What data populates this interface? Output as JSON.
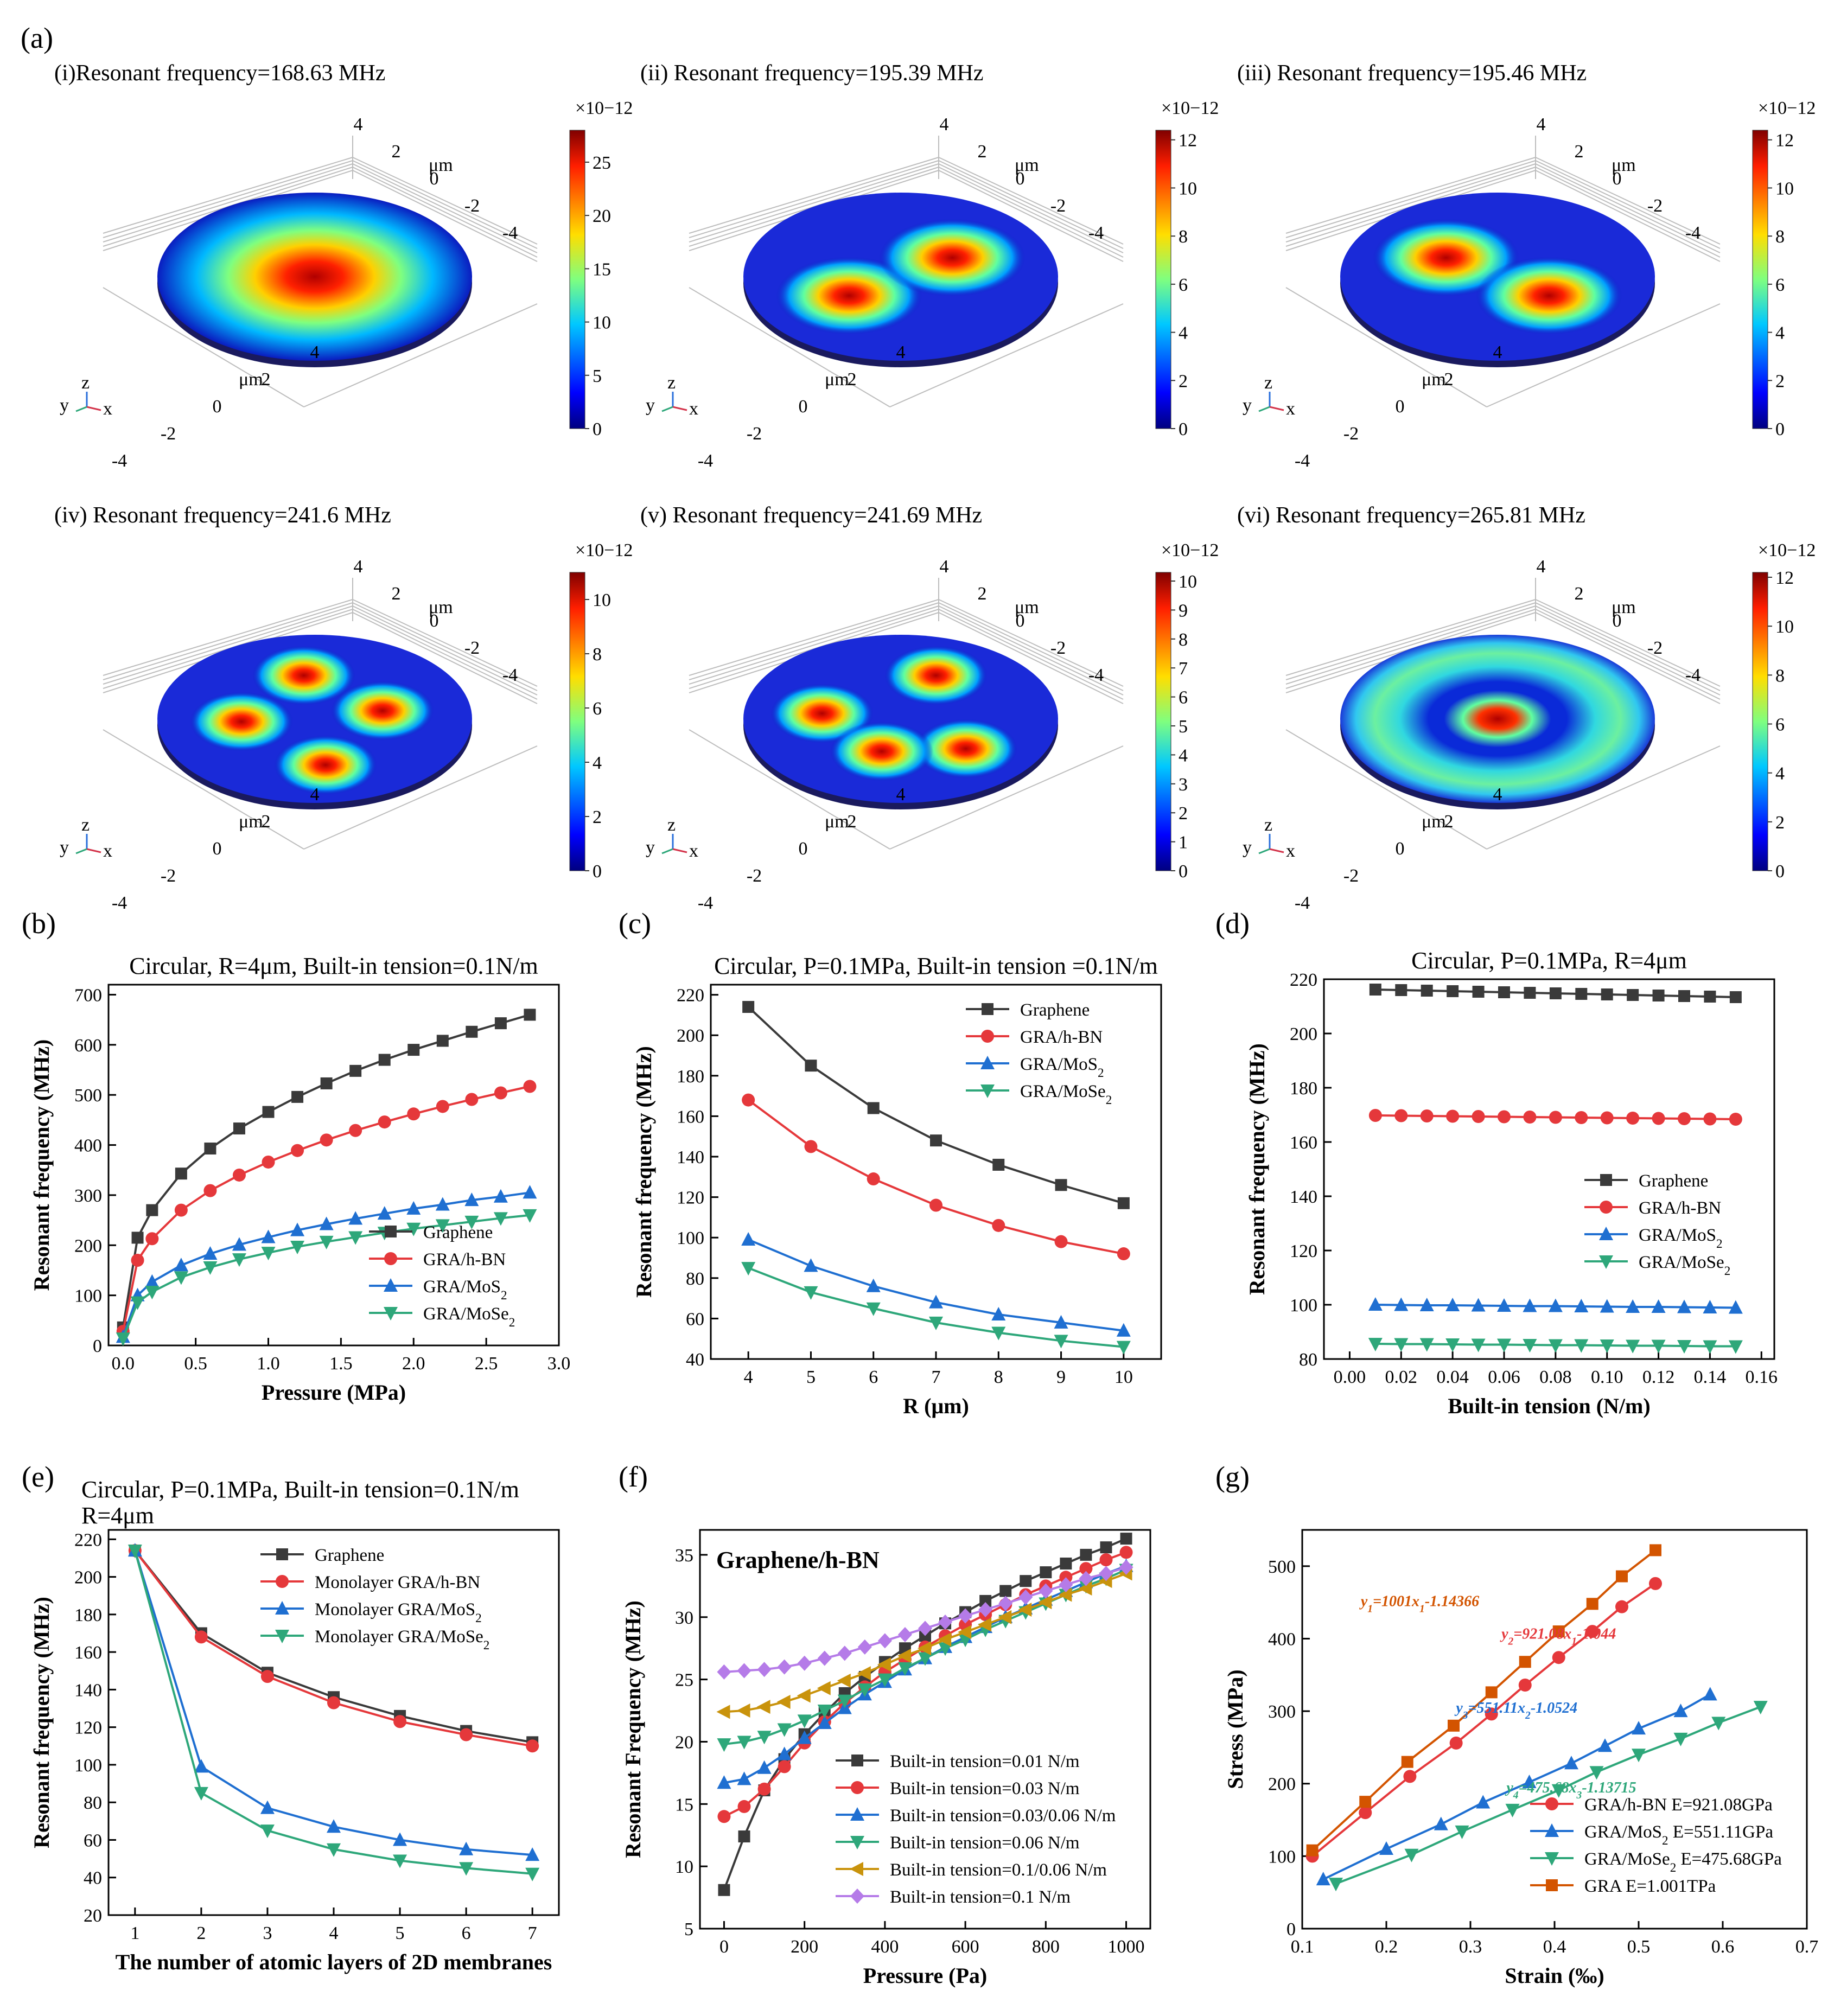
{
  "figure": {
    "panel_a": {
      "letter": "(a)",
      "modes": [
        {
          "label": "(i)Resonant frequency=168.63 MHz",
          "cbar_exp": "×10−12",
          "cbar_max": 28,
          "cbar_ticks": [
            "0",
            "5",
            "10",
            "15",
            "20",
            "25"
          ],
          "pattern": "m01"
        },
        {
          "label": "(ii) Resonant frequency=195.39 MHz",
          "cbar_exp": "×10−12",
          "cbar_max": 12.4,
          "cbar_ticks": [
            "0",
            "2",
            "4",
            "6",
            "8",
            "10",
            "12"
          ],
          "pattern": "m11a"
        },
        {
          "label": "(iii) Resonant frequency=195.46 MHz",
          "cbar_exp": "×10−12",
          "cbar_max": 12.4,
          "cbar_ticks": [
            "0",
            "2",
            "4",
            "6",
            "8",
            "10",
            "12"
          ],
          "pattern": "m11b"
        },
        {
          "label": "(iv) Resonant frequency=241.6 MHz",
          "cbar_exp": "×10−12",
          "cbar_max": 11,
          "cbar_ticks": [
            "0",
            "2",
            "4",
            "6",
            "8",
            "10"
          ],
          "pattern": "m21a"
        },
        {
          "label": "(v) Resonant frequency=241.69 MHz",
          "cbar_exp": "×10−12",
          "cbar_max": 10.3,
          "cbar_ticks": [
            "0",
            "1",
            "2",
            "3",
            "4",
            "5",
            "6",
            "7",
            "8",
            "9",
            "10"
          ],
          "pattern": "m21b"
        },
        {
          "label": "(vi) Resonant frequency=265.81 MHz",
          "cbar_exp": "×10−12",
          "cbar_max": 12.2,
          "cbar_ticks": [
            "0",
            "2",
            "4",
            "6",
            "8",
            "10",
            "12"
          ],
          "pattern": "m02"
        }
      ],
      "axis_unit": "μm",
      "axis_ticks": [
        "-4",
        "-2",
        "0",
        "2",
        "4"
      ],
      "triad": [
        "y",
        "z",
        "x"
      ]
    }
  },
  "chart_data": [
    {
      "panel": "(b)",
      "type": "line",
      "title": "Circular, R=4μm, Built-in tension=0.1N/m",
      "xlabel": "Pressure (MPa)",
      "ylabel": "Resonant frequency (MHz)",
      "xlim": [
        -0.1,
        3.0
      ],
      "ylim": [
        0,
        720
      ],
      "xticks": [
        0.0,
        0.5,
        1.0,
        1.5,
        2.0,
        2.5,
        3.0
      ],
      "xtick_labels": [
        "0.0",
        "0.5",
        "1.0",
        "1.5",
        "2.0",
        "2.5",
        "3.0"
      ],
      "yticks": [
        0,
        100,
        200,
        300,
        400,
        500,
        600,
        700
      ],
      "legend_pos": "bottom-right",
      "x": [
        0.0,
        0.1,
        0.2,
        0.4,
        0.6,
        0.8,
        1.0,
        1.2,
        1.4,
        1.6,
        1.8,
        2.0,
        2.2,
        2.4,
        2.6,
        2.8
      ],
      "series": [
        {
          "name": "Graphene",
          "color": "#3a3a3a",
          "marker": "square",
          "values": [
            36,
            215,
            270,
            343,
            393,
            433,
            466,
            496,
            523,
            548,
            570,
            590,
            608,
            626,
            643,
            660
          ]
        },
        {
          "name": "GRA/h-BN",
          "color": "#e5383b",
          "marker": "circle",
          "values": [
            28,
            170,
            213,
            270,
            309,
            340,
            366,
            389,
            410,
            429,
            446,
            462,
            477,
            491,
            504,
            517
          ]
        },
        {
          "name": "GRA/MoS2",
          "color": "#1f6fd1",
          "marker": "triangle-up",
          "values": [
            17,
            100,
            127,
            160,
            183,
            201,
            216,
            230,
            242,
            253,
            263,
            273,
            281,
            290,
            297,
            305
          ]
        },
        {
          "name": "GRA/MoSe2",
          "color": "#2ea77a",
          "marker": "triangle-down",
          "values": [
            14,
            86,
            107,
            136,
            156,
            172,
            185,
            197,
            207,
            216,
            225,
            233,
            240,
            247,
            254,
            260
          ]
        }
      ]
    },
    {
      "panel": "(c)",
      "type": "line",
      "title": "Circular, P=0.1MPa, Built-in tension =0.1N/m",
      "xlabel": "R (μm)",
      "ylabel": "Resonant frequency (MHz)",
      "xlim": [
        3.4,
        10.6
      ],
      "ylim": [
        40,
        225
      ],
      "xticks": [
        4,
        5,
        6,
        7,
        8,
        9,
        10
      ],
      "xtick_labels": [
        "4",
        "5",
        "6",
        "7",
        "8",
        "9",
        "10"
      ],
      "yticks": [
        40,
        60,
        80,
        100,
        120,
        140,
        160,
        180,
        200,
        220
      ],
      "legend_pos": "top-right",
      "x": [
        4,
        5,
        6,
        7,
        8,
        9,
        10
      ],
      "series": [
        {
          "name": "Graphene",
          "color": "#3a3a3a",
          "marker": "square",
          "values": [
            214,
            185,
            164,
            148,
            136,
            126,
            117
          ]
        },
        {
          "name": "GRA/h-BN",
          "color": "#e5383b",
          "marker": "circle",
          "values": [
            168,
            145,
            129,
            116,
            106,
            98,
            92
          ]
        },
        {
          "name": "GRA/MoS2",
          "color": "#1f6fd1",
          "marker": "triangle-up",
          "values": [
            99,
            86,
            76,
            68,
            62,
            58,
            54
          ]
        },
        {
          "name": "GRA/MoSe2",
          "color": "#2ea77a",
          "marker": "triangle-down",
          "values": [
            85,
            73,
            65,
            58,
            53,
            49,
            46
          ]
        }
      ]
    },
    {
      "panel": "(d)",
      "type": "line",
      "title": "Circular, P=0.1MPa, R=4μm",
      "xlabel": "Built-in tension (N/m)",
      "ylabel": "Resonant frequency (MHz)",
      "xlim": [
        -0.01,
        0.165
      ],
      "ylim": [
        80,
        220
      ],
      "xticks": [
        0.0,
        0.02,
        0.04,
        0.06,
        0.08,
        0.1,
        0.12,
        0.14,
        0.16
      ],
      "xtick_labels": [
        "0.00",
        "0.02",
        "0.04",
        "0.06",
        "0.08",
        "0.10",
        "0.12",
        "0.14",
        "0.16"
      ],
      "yticks": [
        80,
        100,
        120,
        140,
        160,
        180,
        200,
        220
      ],
      "legend_pos": "middle-right",
      "x": [
        0.01,
        0.02,
        0.03,
        0.04,
        0.05,
        0.06,
        0.07,
        0.08,
        0.09,
        0.1,
        0.11,
        0.12,
        0.13,
        0.14,
        0.15
      ],
      "series": [
        {
          "name": "Graphene",
          "color": "#3a3a3a",
          "marker": "square",
          "values": [
            216.2,
            216.0,
            215.8,
            215.6,
            215.4,
            215.2,
            215.0,
            214.8,
            214.6,
            214.4,
            214.2,
            214.0,
            213.8,
            213.6,
            213.4
          ]
        },
        {
          "name": "GRA/h-BN",
          "color": "#e5383b",
          "marker": "circle",
          "values": [
            169.8,
            169.7,
            169.6,
            169.5,
            169.4,
            169.3,
            169.2,
            169.1,
            169.0,
            168.9,
            168.8,
            168.7,
            168.6,
            168.5,
            168.4
          ]
        },
        {
          "name": "GRA/MoS2",
          "color": "#1f6fd1",
          "marker": "triangle-up",
          "values": [
            100.0,
            99.9,
            99.8,
            99.8,
            99.7,
            99.6,
            99.5,
            99.5,
            99.4,
            99.3,
            99.2,
            99.2,
            99.1,
            99.0,
            98.9
          ]
        },
        {
          "name": "GRA/MoSe2",
          "color": "#2ea77a",
          "marker": "triangle-down",
          "values": [
            85.6,
            85.5,
            85.5,
            85.4,
            85.3,
            85.3,
            85.2,
            85.1,
            85.1,
            85.0,
            84.9,
            84.9,
            84.8,
            84.7,
            84.7
          ]
        }
      ]
    },
    {
      "panel": "(e)",
      "type": "line",
      "title": "Circular, P=0.1MPa,  Built-in tension=0.1N/m",
      "title2": "R=4μm",
      "xlabel": "The number of atomic layers of 2D membranes",
      "ylabel": "Resonant frequency (MHz)",
      "xlim": [
        0.6,
        7.4
      ],
      "ylim": [
        20,
        225
      ],
      "xticks": [
        1,
        2,
        3,
        4,
        5,
        6,
        7
      ],
      "xtick_labels": [
        "1",
        "2",
        "3",
        "4",
        "5",
        "6",
        "7"
      ],
      "yticks": [
        20,
        40,
        60,
        80,
        100,
        120,
        140,
        160,
        180,
        200,
        220
      ],
      "legend_pos": "top-right",
      "x": [
        1,
        2,
        3,
        4,
        5,
        6,
        7
      ],
      "series": [
        {
          "name": "Graphene",
          "color": "#3a3a3a",
          "marker": "square",
          "values": [
            214,
            170,
            149,
            136,
            126,
            118,
            112
          ]
        },
        {
          "name": "Monolayer GRA/h-BN",
          "color": "#e5383b",
          "marker": "circle",
          "values": [
            214,
            168,
            147,
            133,
            123,
            116,
            110
          ]
        },
        {
          "name": "Monolayer GRA/MoS2",
          "color": "#1f6fd1",
          "marker": "triangle-up",
          "values": [
            214,
            99,
            77,
            67,
            60,
            55,
            52
          ]
        },
        {
          "name": "Monolayer GRA/MoSe2",
          "color": "#2ea77a",
          "marker": "triangle-down",
          "values": [
            214,
            85,
            65,
            55,
            49,
            45,
            42
          ]
        }
      ]
    },
    {
      "panel": "(f)",
      "type": "line",
      "title": "Graphene/h-BN",
      "xlabel": "Pressure (Pa)",
      "ylabel": "Resonant Frequency (MHz)",
      "xlim": [
        -60,
        1060
      ],
      "ylim": [
        5,
        37
      ],
      "xticks": [
        0,
        200,
        400,
        600,
        800,
        1000
      ],
      "xtick_labels": [
        "0",
        "200",
        "400",
        "600",
        "800",
        "1000"
      ],
      "yticks": [
        5,
        10,
        15,
        20,
        25,
        30,
        35
      ],
      "legend_pos": "bottom-right",
      "x": [
        0,
        50,
        100,
        150,
        200,
        250,
        300,
        350,
        400,
        450,
        500,
        550,
        600,
        650,
        700,
        750,
        800,
        850,
        900,
        950,
        1000
      ],
      "series": [
        {
          "name": "Built-in tension=0.01 N/m",
          "color": "#3a3a3a",
          "marker": "square",
          "values": [
            8.1,
            12.4,
            16.1,
            18.6,
            20.6,
            22.3,
            23.9,
            25.2,
            26.4,
            27.5,
            28.5,
            29.5,
            30.4,
            31.3,
            32.1,
            32.9,
            33.6,
            34.3,
            35.0,
            35.6,
            36.3
          ]
        },
        {
          "name": "Built-in tension=0.03 N/m",
          "color": "#e5383b",
          "marker": "circle",
          "values": [
            14.0,
            14.8,
            16.2,
            18.0,
            19.9,
            21.6,
            23.1,
            24.4,
            25.6,
            26.6,
            27.6,
            28.5,
            29.4,
            30.2,
            31.0,
            31.8,
            32.5,
            33.2,
            33.9,
            34.6,
            35.2
          ]
        },
        {
          "name": "Built-in tension=0.03/0.06 N/m",
          "color": "#1f6fd1",
          "marker": "triangle-up",
          "values": [
            16.7,
            17.0,
            17.9,
            19.0,
            20.3,
            21.5,
            22.7,
            23.8,
            24.8,
            25.8,
            26.7,
            27.6,
            28.4,
            29.2,
            30.0,
            30.7,
            31.4,
            32.1,
            32.8,
            33.5,
            34.1
          ]
        },
        {
          "name": "Built-in tension=0.06 N/m",
          "color": "#2ea77a",
          "marker": "triangle-down",
          "values": [
            19.8,
            20.0,
            20.4,
            21.0,
            21.7,
            22.5,
            23.3,
            24.2,
            25.0,
            25.9,
            26.7,
            27.5,
            28.2,
            29.0,
            29.7,
            30.4,
            31.1,
            31.8,
            32.5,
            33.1,
            33.8
          ]
        },
        {
          "name": "Built-in tension=0.1/0.06 N/m",
          "color": "#c9930c",
          "marker": "triangle-left",
          "values": [
            22.4,
            22.5,
            22.8,
            23.2,
            23.7,
            24.3,
            24.9,
            25.5,
            26.2,
            26.9,
            27.5,
            28.2,
            28.8,
            29.4,
            30.0,
            30.6,
            31.2,
            31.8,
            32.3,
            32.9,
            33.5
          ]
        },
        {
          "name": "Built-in tension=0.1 N/m",
          "color": "#b57be8",
          "marker": "diamond",
          "values": [
            25.6,
            25.7,
            25.8,
            26.0,
            26.3,
            26.7,
            27.1,
            27.6,
            28.1,
            28.6,
            29.1,
            29.6,
            30.1,
            30.6,
            31.1,
            31.6,
            32.1,
            32.6,
            33.1,
            33.5,
            34.0
          ]
        }
      ]
    },
    {
      "panel": "(g)",
      "type": "line",
      "title": "",
      "xlabel": "Strain (‰)",
      "ylabel": "Stress (MPa)",
      "xlim": [
        0.1,
        0.7
      ],
      "ylim": [
        0,
        550
      ],
      "xticks": [
        0.1,
        0.2,
        0.3,
        0.4,
        0.5,
        0.6,
        0.7
      ],
      "xtick_labels": [
        "0.1",
        "0.2",
        "0.3",
        "0.4",
        "0.5",
        "0.6",
        "0.7"
      ],
      "yticks": [
        0,
        100,
        200,
        300,
        400,
        500
      ],
      "legend_pos": "bottom-right",
      "series": [
        {
          "name": "GRA/h-BN E=921.08GPa",
          "color": "#e5383b",
          "marker": "circle",
          "x": [
            0.112,
            0.175,
            0.228,
            0.283,
            0.325,
            0.365,
            0.405,
            0.445,
            0.48,
            0.52
          ],
          "values": [
            100,
            160,
            210,
            256,
            296,
            336,
            374,
            410,
            444,
            476
          ]
        },
        {
          "name": "GRA/MoS2 E=551.11GPa",
          "color": "#1f6fd1",
          "marker": "triangle-up",
          "x": [
            0.125,
            0.2,
            0.265,
            0.315,
            0.37,
            0.42,
            0.46,
            0.5,
            0.55,
            0.585
          ],
          "values": [
            68,
            110,
            144,
            174,
            202,
            228,
            252,
            276,
            300,
            323
          ]
        },
        {
          "name": "GRA/MoSe2 E=475.68GPa",
          "color": "#2ea77a",
          "marker": "triangle-down",
          "x": [
            0.14,
            0.23,
            0.29,
            0.35,
            0.405,
            0.45,
            0.5,
            0.55,
            0.595,
            0.645
          ],
          "values": [
            62,
            102,
            134,
            164,
            191,
            216,
            240,
            262,
            284,
            306
          ]
        },
        {
          "name": "GRA E=1.001TPa",
          "color": "#d35400",
          "marker": "square",
          "x": [
            0.112,
            0.175,
            0.225,
            0.28,
            0.325,
            0.365,
            0.405,
            0.445,
            0.48,
            0.52
          ],
          "values": [
            108,
            175,
            230,
            280,
            326,
            368,
            410,
            448,
            486,
            522
          ]
        }
      ],
      "equations": [
        {
          "text": "y1=1001x1-1.14366",
          "color": "#d35400",
          "x": 0.24,
          "y": 445
        },
        {
          "text": "y2=921.08x1-1.044",
          "color": "#e5383b",
          "x": 0.405,
          "y": 400
        },
        {
          "text": "y3=551.11x2-1.0524",
          "color": "#1f6fd1",
          "x": 0.355,
          "y": 298
        },
        {
          "text": "y4=475.68x3-1.13715",
          "color": "#2ea77a",
          "x": 0.42,
          "y": 188
        }
      ]
    }
  ]
}
